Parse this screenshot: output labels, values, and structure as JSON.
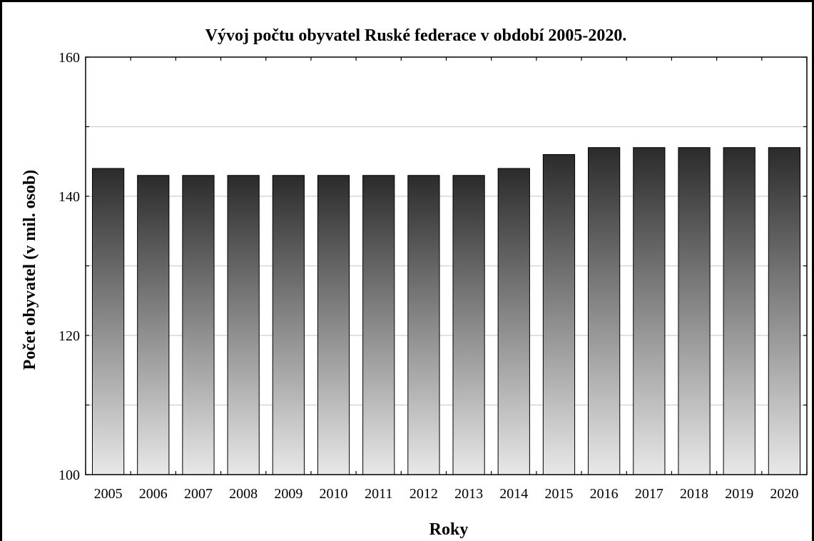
{
  "chart_data": {
    "type": "bar",
    "title": "Vývoj počtu obyvatel Ruské federace v období 2005-2020.",
    "xlabel": "Roky",
    "ylabel": "Počet obyvatel (v mil. osob)",
    "categories": [
      "2005",
      "2006",
      "2007",
      "2008",
      "2009",
      "2010",
      "2011",
      "2012",
      "2013",
      "2014",
      "2015",
      "2016",
      "2017",
      "2018",
      "2019",
      "2020"
    ],
    "values": [
      144,
      143,
      143,
      143,
      143,
      143,
      143,
      143,
      143,
      144,
      146,
      147,
      147,
      147,
      147,
      147
    ],
    "ylim": [
      100,
      160
    ],
    "y_ticks": [
      100,
      120,
      140,
      160
    ],
    "y_minor_ticks": [
      110,
      130,
      150
    ],
    "grid": true,
    "bar_gradient": {
      "top": "#2b2b2b",
      "bottom": "#e8e8e8"
    }
  }
}
